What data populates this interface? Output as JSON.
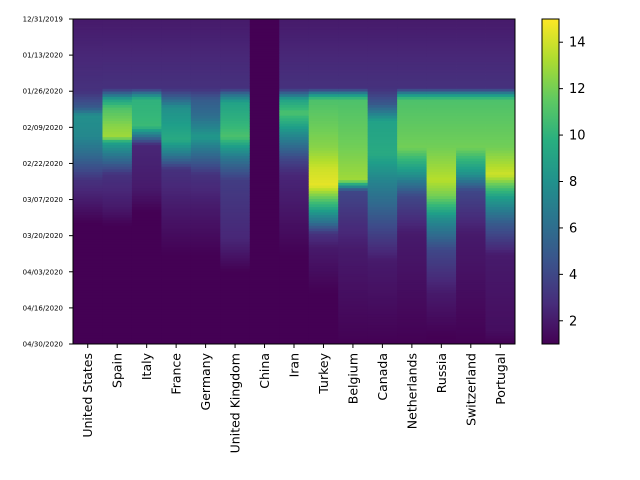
{
  "chart_data": {
    "type": "heatmap",
    "colormap": "viridis",
    "countries": [
      "United States",
      "Spain",
      "Italy",
      "France",
      "Germany",
      "United Kingdom",
      "China",
      "Iran",
      "Turkey",
      "Belgium",
      "Canada",
      "Netherlands",
      "Russia",
      "Switzerland",
      "Portugal"
    ],
    "y_tick_labels": [
      "12/31/2019",
      "01/13/2020",
      "01/26/2020",
      "02/09/2020",
      "02/22/2020",
      "03/07/2020",
      "03/20/2020",
      "04/03/2020",
      "04/16/2020",
      "04/30/2020"
    ],
    "y_range_days": 121,
    "colorbar": {
      "min": 1,
      "max": 15,
      "ticks": [
        2,
        4,
        6,
        8,
        10,
        12,
        14
      ]
    },
    "column_profiles": [
      [
        [
          0,
          2
        ],
        [
          27,
          3
        ],
        [
          33,
          5
        ],
        [
          36,
          8
        ],
        [
          44,
          7.5
        ],
        [
          50,
          6
        ],
        [
          55,
          4.5
        ],
        [
          60,
          3
        ],
        [
          68,
          2
        ],
        [
          76,
          1
        ],
        [
          121,
          1
        ]
      ],
      [
        [
          0,
          2
        ],
        [
          26,
          3
        ],
        [
          28,
          6
        ],
        [
          30,
          9
        ],
        [
          33,
          11
        ],
        [
          40,
          12.5
        ],
        [
          44,
          13
        ],
        [
          46,
          9
        ],
        [
          52,
          6
        ],
        [
          58,
          3
        ],
        [
          70,
          2
        ],
        [
          77,
          1
        ],
        [
          121,
          1
        ]
      ],
      [
        [
          0,
          2
        ],
        [
          26,
          3
        ],
        [
          28,
          7
        ],
        [
          30,
          10
        ],
        [
          40,
          10.5
        ],
        [
          47,
          2.5
        ],
        [
          63,
          2
        ],
        [
          72,
          1
        ],
        [
          121,
          1
        ]
      ],
      [
        [
          0,
          2
        ],
        [
          26,
          3
        ],
        [
          29,
          5
        ],
        [
          33,
          8
        ],
        [
          45,
          9.5
        ],
        [
          50,
          7
        ],
        [
          56,
          3
        ],
        [
          70,
          2
        ],
        [
          88,
          1
        ],
        [
          121,
          1
        ]
      ],
      [
        [
          0,
          2
        ],
        [
          26,
          3
        ],
        [
          30,
          5
        ],
        [
          36,
          6
        ],
        [
          44,
          8.5
        ],
        [
          50,
          6
        ],
        [
          58,
          3
        ],
        [
          70,
          2
        ],
        [
          88,
          1
        ],
        [
          121,
          1
        ]
      ],
      [
        [
          0,
          2
        ],
        [
          26,
          3
        ],
        [
          28,
          6
        ],
        [
          31,
          9
        ],
        [
          38,
          10
        ],
        [
          44,
          11
        ],
        [
          47,
          9
        ],
        [
          53,
          6
        ],
        [
          60,
          3.5
        ],
        [
          82,
          2.5
        ],
        [
          94,
          1
        ],
        [
          121,
          1
        ]
      ],
      [
        [
          0,
          1
        ],
        [
          121,
          1
        ]
      ],
      [
        [
          0,
          2
        ],
        [
          26,
          3
        ],
        [
          28,
          6
        ],
        [
          30,
          9
        ],
        [
          35,
          11
        ],
        [
          52,
          4
        ],
        [
          58,
          2.5
        ],
        [
          88,
          1
        ],
        [
          121,
          1
        ]
      ],
      [
        [
          0,
          2
        ],
        [
          26,
          3
        ],
        [
          28,
          8
        ],
        [
          30,
          11
        ],
        [
          48,
          12.5
        ],
        [
          56,
          14
        ],
        [
          62,
          14.5
        ],
        [
          76,
          6
        ],
        [
          80,
          3
        ],
        [
          85,
          2
        ],
        [
          102,
          1
        ],
        [
          121,
          1
        ]
      ],
      [
        [
          0,
          2
        ],
        [
          26,
          3
        ],
        [
          28,
          8
        ],
        [
          30,
          11
        ],
        [
          48,
          12
        ],
        [
          60,
          13
        ],
        [
          64,
          4
        ],
        [
          74,
          3
        ],
        [
          86,
          2
        ],
        [
          121,
          1
        ]
      ],
      [
        [
          0,
          2
        ],
        [
          26,
          3
        ],
        [
          32,
          5
        ],
        [
          38,
          9
        ],
        [
          50,
          9.5
        ],
        [
          62,
          7
        ],
        [
          78,
          4
        ],
        [
          90,
          2
        ],
        [
          121,
          1
        ]
      ],
      [
        [
          0,
          2
        ],
        [
          26,
          3
        ],
        [
          28,
          8
        ],
        [
          30,
          11
        ],
        [
          48,
          12
        ],
        [
          58,
          8
        ],
        [
          66,
          4
        ],
        [
          80,
          2
        ],
        [
          121,
          1
        ]
      ],
      [
        [
          0,
          2
        ],
        [
          26,
          3
        ],
        [
          28,
          8
        ],
        [
          30,
          11
        ],
        [
          48,
          12
        ],
        [
          60,
          13.5
        ],
        [
          66,
          12
        ],
        [
          74,
          8
        ],
        [
          86,
          4
        ],
        [
          102,
          2
        ],
        [
          118,
          1
        ],
        [
          121,
          1
        ]
      ],
      [
        [
          0,
          2
        ],
        [
          26,
          3
        ],
        [
          28,
          8
        ],
        [
          30,
          11
        ],
        [
          48,
          12
        ],
        [
          58,
          8
        ],
        [
          64,
          4
        ],
        [
          80,
          2
        ],
        [
          121,
          1
        ]
      ],
      [
        [
          0,
          2
        ],
        [
          26,
          3
        ],
        [
          28,
          8
        ],
        [
          30,
          11
        ],
        [
          48,
          12
        ],
        [
          58,
          14
        ],
        [
          66,
          9
        ],
        [
          76,
          5
        ],
        [
          88,
          2
        ],
        [
          116,
          1.5
        ],
        [
          121,
          1
        ]
      ]
    ]
  }
}
